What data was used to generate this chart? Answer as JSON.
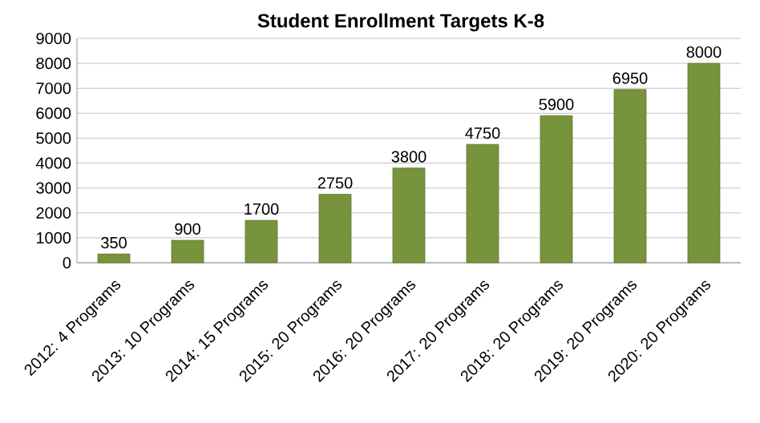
{
  "chart_data": {
    "type": "bar",
    "title": "Student Enrollment Targets K-8",
    "categories": [
      "2012: 4 Programs",
      "2013: 10 Programs",
      "2014: 15 Programs",
      "2015: 20 Programs",
      "2016: 20 Programs",
      "2017: 20 Programs",
      "2018: 20 Programs",
      "2019: 20 Programs",
      "2020: 20 Programs"
    ],
    "values": [
      350,
      900,
      1700,
      2750,
      3800,
      4750,
      5900,
      6950,
      8000
    ],
    "color": "#77933c",
    "ylim": [
      0,
      9000
    ],
    "yticks": [
      0,
      1000,
      2000,
      3000,
      4000,
      5000,
      6000,
      7000,
      8000,
      9000
    ],
    "grid": "y",
    "data_labels": true
  }
}
